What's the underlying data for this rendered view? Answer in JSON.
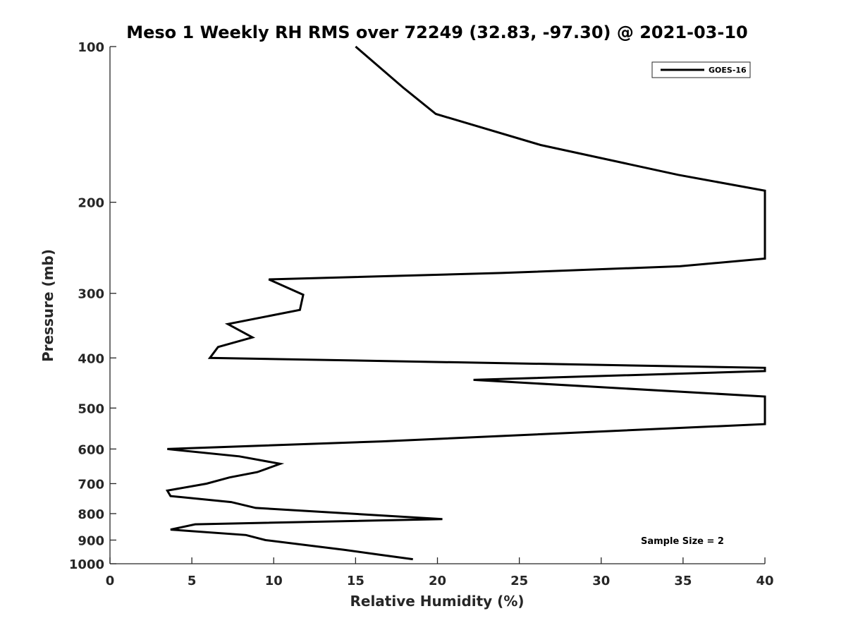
{
  "chart_data": {
    "type": "line",
    "title": "Meso 1 Weekly RH RMS over 72249 (32.83, -97.30) @ 2021-03-10",
    "xlabel": "Relative Humidity (%)",
    "ylabel": "Pressure (mb)",
    "xlim": [
      0,
      40
    ],
    "ylim": [
      100,
      1000
    ],
    "y_scale": "log",
    "y_reversed": true,
    "x_ticks": [
      0,
      5,
      10,
      15,
      20,
      25,
      30,
      35,
      40
    ],
    "y_ticks": [
      100,
      200,
      300,
      400,
      500,
      600,
      700,
      800,
      900,
      1000
    ],
    "grid": false,
    "legend_position": "top-right",
    "annotation": "Sample Size = 2",
    "series": [
      {
        "name": "GOES-16",
        "color": "#000000",
        "points": [
          [
            15.0,
            100
          ],
          [
            17.9,
            120
          ],
          [
            19.9,
            135
          ],
          [
            26.3,
            155
          ],
          [
            34.7,
            177
          ],
          [
            40,
            190
          ],
          [
            40,
            257
          ],
          [
            34.8,
            266
          ],
          [
            23.9,
            274
          ],
          [
            9.7,
            282
          ],
          [
            11.8,
            302
          ],
          [
            11.6,
            323
          ],
          [
            7.2,
            344
          ],
          [
            8.7,
            365
          ],
          [
            6.6,
            381
          ],
          [
            6.1,
            400
          ],
          [
            40,
            418
          ],
          [
            40,
            424
          ],
          [
            22.2,
            441
          ],
          [
            40,
            475
          ],
          [
            40,
            537
          ],
          [
            16.6,
            580
          ],
          [
            3.5,
            600
          ],
          [
            7.9,
            620
          ],
          [
            10.4,
            641
          ],
          [
            9.0,
            665
          ],
          [
            7.3,
            681
          ],
          [
            5.9,
            700
          ],
          [
            3.5,
            722
          ],
          [
            3.7,
            740
          ],
          [
            7.4,
            760
          ],
          [
            8.9,
            780
          ],
          [
            20.3,
            820
          ],
          [
            5.2,
            839
          ],
          [
            3.7,
            859
          ],
          [
            8.3,
            880
          ],
          [
            9.5,
            900
          ],
          [
            14.3,
            940
          ],
          [
            16.4,
            960
          ],
          [
            18.5,
            980
          ]
        ]
      }
    ]
  }
}
